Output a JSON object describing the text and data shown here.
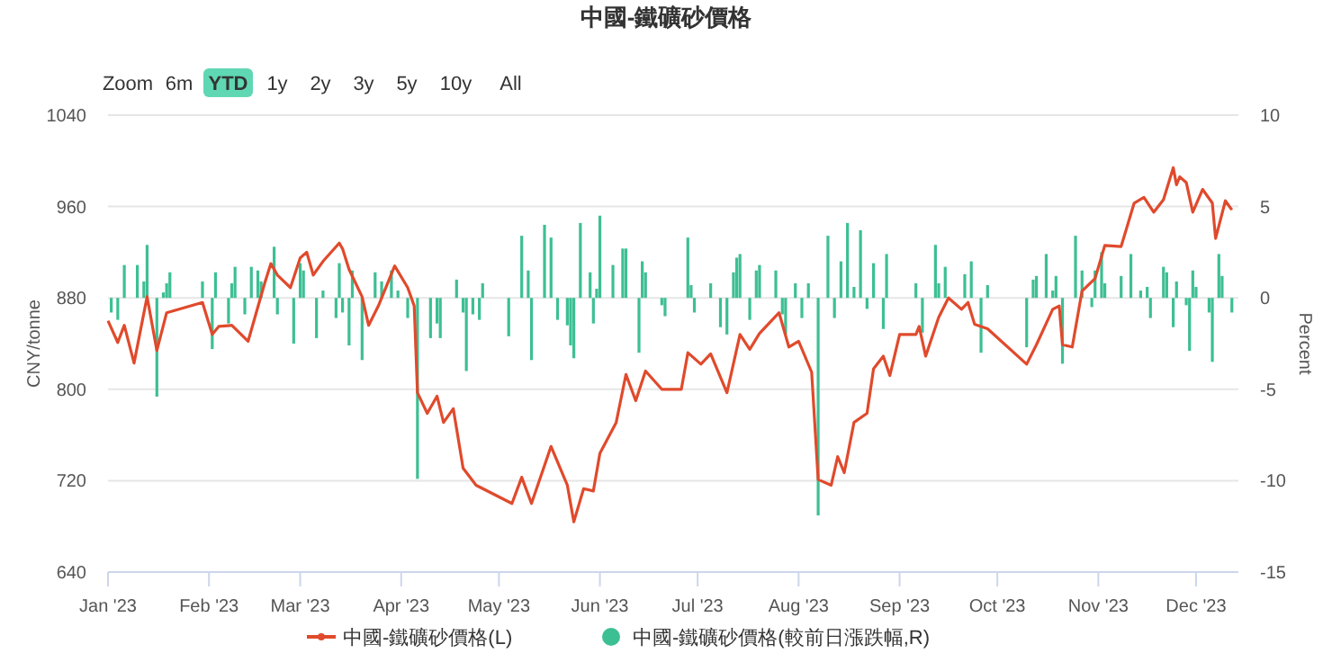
{
  "chart_data": {
    "type": "line",
    "title": "中國-鐵礦砂價格",
    "ylabel": "CNY/tonne",
    "y2label": "Percent",
    "annotations": [
      "Zoom",
      "6m",
      "YTD",
      "1y",
      "2y",
      "3y",
      "5y",
      "10y",
      "All"
    ],
    "xlim": [
      "2023-01-01",
      "2023-12-14"
    ],
    "xticks": [
      {
        "value": "2023-01-01",
        "label": "Jan '23"
      },
      {
        "value": "2023-02-01",
        "label": "Feb '23"
      },
      {
        "value": "2023-03-01",
        "label": "Mar '23"
      },
      {
        "value": "2023-04-01",
        "label": "Apr '23"
      },
      {
        "value": "2023-05-01",
        "label": "May '23"
      },
      {
        "value": "2023-06-01",
        "label": "Jun '23"
      },
      {
        "value": "2023-07-01",
        "label": "Jul '23"
      },
      {
        "value": "2023-08-01",
        "label": "Aug '23"
      },
      {
        "value": "2023-09-01",
        "label": "Sep '23"
      },
      {
        "value": "2023-10-01",
        "label": "Oct '23"
      },
      {
        "value": "2023-11-01",
        "label": "Nov '23"
      },
      {
        "value": "2023-12-01",
        "label": "Dec '23"
      }
    ],
    "ylim": [
      640,
      1040
    ],
    "yticks": [
      640,
      720,
      800,
      880,
      960,
      1040
    ],
    "y2lim": [
      -15,
      10
    ],
    "y2ticks": [
      -15,
      -10,
      -5,
      0,
      5,
      10
    ],
    "grid": "y",
    "legend": "bottom",
    "marker": "none",
    "line_style": "solid",
    "series": [
      {
        "name": "中國-鐵礦砂價格(L)",
        "color": "#e04a2c",
        "x": [
          "2023-01-01",
          "2023-01-04",
          "2023-01-06",
          "2023-01-09",
          "2023-01-13",
          "2023-01-16",
          "2023-01-19",
          "2023-01-30",
          "2023-02-02",
          "2023-02-04",
          "2023-02-08",
          "2023-02-13",
          "2023-02-18",
          "2023-02-20",
          "2023-02-22",
          "2023-02-26",
          "2023-03-01",
          "2023-03-03",
          "2023-03-05",
          "2023-03-08",
          "2023-03-13",
          "2023-03-14",
          "2023-03-16",
          "2023-03-20",
          "2023-03-22",
          "2023-03-25",
          "2023-03-30",
          "2023-04-03",
          "2023-04-05",
          "2023-04-06",
          "2023-04-09",
          "2023-04-12",
          "2023-04-14",
          "2023-04-17",
          "2023-04-20",
          "2023-04-24",
          "2023-05-05",
          "2023-05-08",
          "2023-05-11",
          "2023-05-17",
          "2023-05-22",
          "2023-05-24",
          "2023-05-27",
          "2023-05-30",
          "2023-06-01",
          "2023-06-06",
          "2023-06-09",
          "2023-06-12",
          "2023-06-15",
          "2023-06-20",
          "2023-06-26",
          "2023-06-28",
          "2023-07-02",
          "2023-07-05",
          "2023-07-10",
          "2023-07-14",
          "2023-07-17",
          "2023-07-20",
          "2023-07-26",
          "2023-07-29",
          "2023-08-01",
          "2023-08-05",
          "2023-08-07",
          "2023-08-11",
          "2023-08-13",
          "2023-08-15",
          "2023-08-18",
          "2023-08-22",
          "2023-08-24",
          "2023-08-27",
          "2023-08-29",
          "2023-09-01",
          "2023-09-06",
          "2023-09-07",
          "2023-09-09",
          "2023-09-13",
          "2023-09-16",
          "2023-09-20",
          "2023-09-22",
          "2023-09-24",
          "2023-09-28",
          "2023-10-10",
          "2023-10-13",
          "2023-10-18",
          "2023-10-20",
          "2023-10-21",
          "2023-10-24",
          "2023-10-27",
          "2023-10-31",
          "2023-11-03",
          "2023-11-08",
          "2023-11-12",
          "2023-11-15",
          "2023-11-18",
          "2023-11-21",
          "2023-11-24",
          "2023-11-25",
          "2023-11-26",
          "2023-11-28",
          "2023-11-30",
          "2023-12-03",
          "2023-12-06",
          "2023-12-07",
          "2023-12-10",
          "2023-12-12"
        ],
        "values": [
          860,
          841,
          856,
          823,
          881,
          834,
          867,
          876,
          848,
          855,
          856,
          842,
          892,
          910,
          900,
          889,
          915,
          920,
          900,
          912,
          928,
          923,
          905,
          881,
          856,
          873,
          908,
          889,
          873,
          797,
          779,
          794,
          771,
          783,
          731,
          716,
          700,
          723,
          700,
          750,
          716,
          684,
          713,
          711,
          744,
          771,
          813,
          790,
          816,
          800,
          800,
          832,
          822,
          831,
          797,
          848,
          835,
          849,
          867,
          837,
          842,
          815,
          721,
          716,
          741,
          727,
          771,
          779,
          818,
          829,
          812,
          848,
          848,
          855,
          829,
          863,
          880,
          870,
          876,
          857,
          853,
          822,
          839,
          870,
          873,
          839,
          837,
          886,
          897,
          926,
          925,
          963,
          968,
          955,
          966,
          994,
          979,
          986,
          981,
          955,
          975,
          963,
          932,
          965,
          957
        ]
      },
      {
        "name": "中國-鐵礦砂價格(較前日漲跌幅,R)",
        "type": "bar",
        "axis": "y2",
        "color": "#3dbf94",
        "x": [
          "2023-01-02",
          "2023-01-04",
          "2023-01-06",
          "2023-01-10",
          "2023-01-12",
          "2023-01-13",
          "2023-01-16",
          "2023-01-18",
          "2023-01-19",
          "2023-01-20",
          "2023-01-30",
          "2023-02-02",
          "2023-02-03",
          "2023-02-07",
          "2023-02-08",
          "2023-02-09",
          "2023-02-12",
          "2023-02-14",
          "2023-02-16",
          "2023-02-17",
          "2023-02-21",
          "2023-02-22",
          "2023-02-27",
          "2023-03-01",
          "2023-03-02",
          "2023-03-06",
          "2023-03-08",
          "2023-03-12",
          "2023-03-13",
          "2023-03-14",
          "2023-03-16",
          "2023-03-17",
          "2023-03-20",
          "2023-03-24",
          "2023-03-26",
          "2023-03-29",
          "2023-03-31",
          "2023-04-03",
          "2023-04-06",
          "2023-04-10",
          "2023-04-12",
          "2023-04-13",
          "2023-04-18",
          "2023-04-20",
          "2023-04-21",
          "2023-04-23",
          "2023-04-25",
          "2023-04-26",
          "2023-05-04",
          "2023-05-08",
          "2023-05-10",
          "2023-05-11",
          "2023-05-15",
          "2023-05-17",
          "2023-05-19",
          "2023-05-22",
          "2023-05-23",
          "2023-05-24",
          "2023-05-26",
          "2023-05-29",
          "2023-05-30",
          "2023-05-31",
          "2023-06-01",
          "2023-06-05",
          "2023-06-08",
          "2023-06-09",
          "2023-06-13",
          "2023-06-14",
          "2023-06-15",
          "2023-06-20",
          "2023-06-21",
          "2023-06-28",
          "2023-06-29",
          "2023-06-30",
          "2023-07-05",
          "2023-07-08",
          "2023-07-10",
          "2023-07-12",
          "2023-07-13",
          "2023-07-14",
          "2023-07-17",
          "2023-07-19",
          "2023-07-20",
          "2023-07-25",
          "2023-07-27",
          "2023-07-28",
          "2023-07-31",
          "2023-08-02",
          "2023-08-04",
          "2023-08-07",
          "2023-08-10",
          "2023-08-12",
          "2023-08-14",
          "2023-08-16",
          "2023-08-18",
          "2023-08-20",
          "2023-08-22",
          "2023-08-24",
          "2023-08-27",
          "2023-08-28",
          "2023-09-06",
          "2023-09-08",
          "2023-09-12",
          "2023-09-13",
          "2023-09-15",
          "2023-09-21",
          "2023-09-23",
          "2023-09-26",
          "2023-09-28",
          "2023-10-10",
          "2023-10-12",
          "2023-10-13",
          "2023-10-16",
          "2023-10-18",
          "2023-10-19",
          "2023-10-21",
          "2023-10-25",
          "2023-10-27",
          "2023-10-30",
          "2023-10-31",
          "2023-11-02",
          "2023-11-03",
          "2023-11-08",
          "2023-11-11",
          "2023-11-14",
          "2023-11-16",
          "2023-11-17",
          "2023-11-21",
          "2023-11-22",
          "2023-11-24",
          "2023-11-25",
          "2023-11-28",
          "2023-11-29",
          "2023-11-30",
          "2023-12-01",
          "2023-12-05",
          "2023-12-06",
          "2023-12-08",
          "2023-12-09",
          "2023-12-12"
        ],
        "values": [
          -0.8,
          -1.2,
          1.8,
          1.8,
          0.9,
          2.9,
          -5.4,
          0.3,
          0.8,
          1.4,
          0.9,
          -2.8,
          1.4,
          -1.4,
          0.8,
          1.7,
          -0.9,
          1.7,
          1.5,
          0.9,
          2.8,
          -0.9,
          -2.5,
          1.9,
          1.5,
          -2.2,
          0.4,
          -1.1,
          1.9,
          -0.8,
          -2.6,
          1.5,
          -3.4,
          1.4,
          0.9,
          1.5,
          0.4,
          -1.1,
          -9.9,
          -2.2,
          -1.4,
          -2.2,
          1.0,
          -0.8,
          -4,
          -0.9,
          -1.2,
          0.8,
          -2.1,
          3.4,
          1.5,
          -3.4,
          4,
          3.3,
          -1.2,
          -1.5,
          -2.6,
          -3.3,
          4.1,
          1.4,
          -1.4,
          0.5,
          4.5,
          1.8,
          2.7,
          2.7,
          -3,
          2,
          1.4,
          -0.4,
          -1,
          3.3,
          0.7,
          -0.8,
          0.8,
          -1.6,
          -2,
          1.4,
          2.2,
          2.4,
          -1.2,
          1.5,
          1.8,
          1.5,
          -0.9,
          -2,
          0.8,
          -1.1,
          0.8,
          -11.9,
          3.4,
          -1.1,
          2,
          4.1,
          0.6,
          3.7,
          -0.6,
          1.9,
          -1.7,
          2.4,
          0.8,
          -1.9,
          2.9,
          0.8,
          1.7,
          1.3,
          2,
          -3,
          0.7,
          -2.7,
          1,
          1.2,
          2.4,
          0.4,
          1.2,
          -3.6,
          3.4,
          1.5,
          -0.5,
          1.5,
          2.5,
          0.8,
          1.2,
          2.4,
          0.4,
          0.6,
          -1.1,
          1.7,
          1.4,
          -1.6,
          0.9,
          -0.4,
          -2.9,
          1.5,
          0.6,
          -0.8,
          -3.5,
          2.4,
          1.2,
          -0.8
        ]
      }
    ]
  }
}
